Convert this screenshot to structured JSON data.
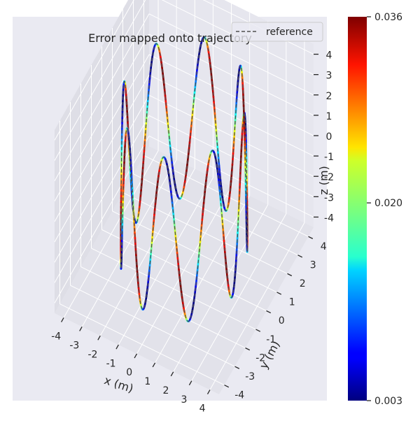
{
  "chart_data": {
    "type": "line",
    "projection": "3d",
    "title": "Error mapped onto trajectory",
    "xlabel": "x (m)",
    "ylabel": "y (m)",
    "zlabel": "z (m)",
    "xlim": [
      -4.5,
      4.5
    ],
    "ylim": [
      -4.5,
      4.5
    ],
    "zlim": [
      -4.5,
      4.5
    ],
    "xticks": [
      -4,
      -3,
      -2,
      -1,
      0,
      1,
      2,
      3,
      4
    ],
    "yticks": [
      -4,
      -3,
      -2,
      -1,
      0,
      1,
      2,
      3,
      4
    ],
    "zticks": [
      -4,
      -3,
      -2,
      -1,
      0,
      1,
      2,
      3,
      4
    ],
    "grid": true,
    "legend": {
      "placement": "top-right",
      "entries": [
        {
          "label": "reference",
          "style": "dashed"
        }
      ]
    },
    "trajectory": {
      "shape": "circle with vertical oscillation",
      "radius": 3,
      "z_amplitude": 4,
      "oscillations_per_revolution": 8
    },
    "colorbar": {
      "colormap": "jet",
      "min": 0.003,
      "max": 0.036,
      "tick_values": [
        0.003,
        0.02,
        0.036
      ],
      "tick_labels": [
        "0.003",
        "0.020",
        "0.036"
      ]
    }
  },
  "colors": {
    "pane_bg": "#eaeaf2",
    "grid": "#ffffff",
    "reference_line": "#505050"
  }
}
